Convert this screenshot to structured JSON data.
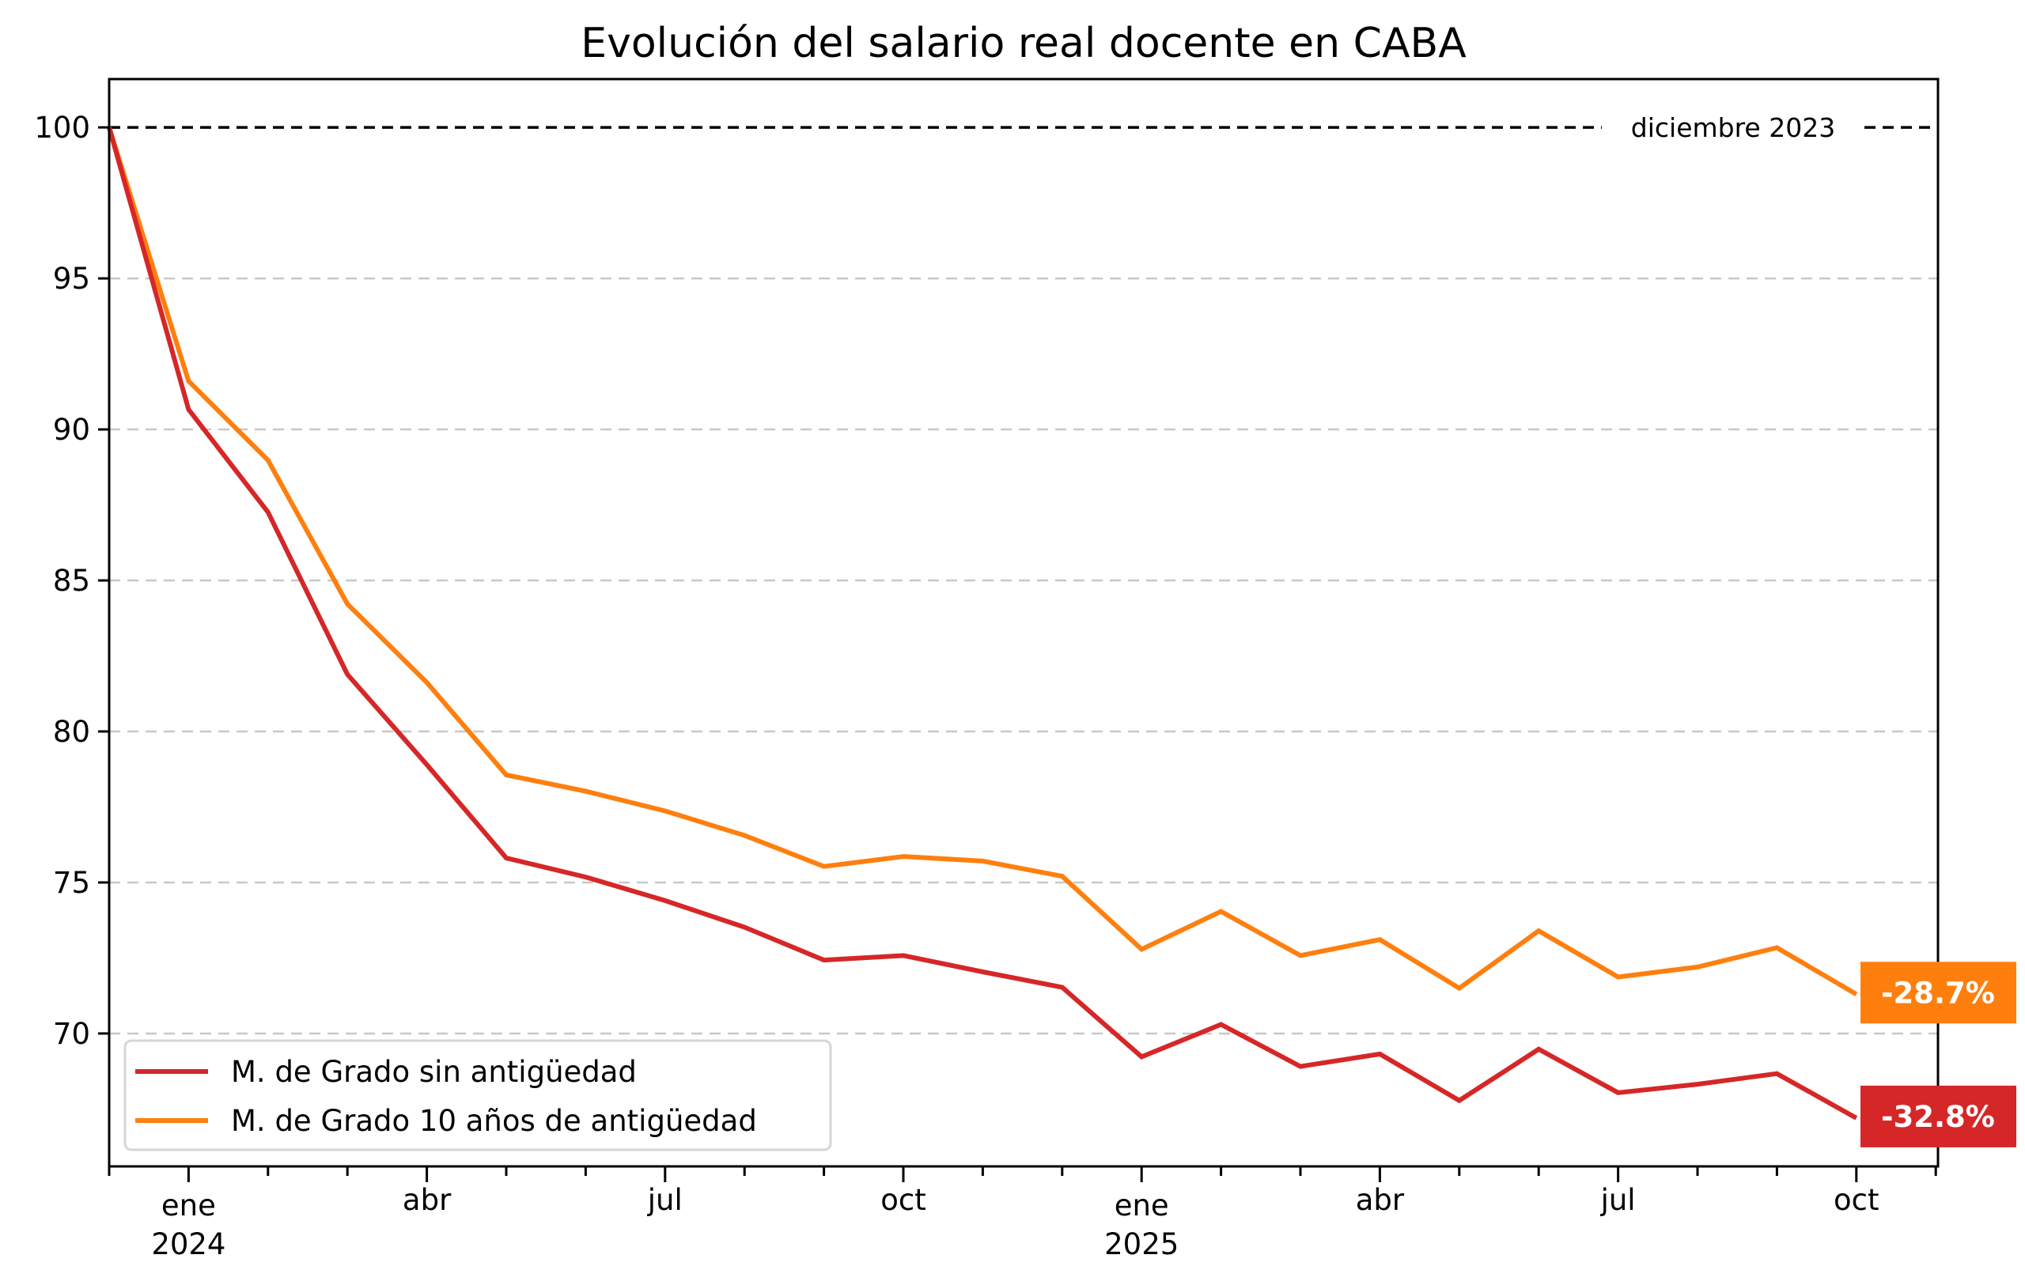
{
  "chart_data": {
    "type": "line",
    "title": "Evolución del salario real docente en CABA",
    "xlabel": "",
    "ylabel": "",
    "ylim": [
      65.6,
      101.6
    ],
    "yticks": [
      70,
      75,
      80,
      85,
      90,
      95,
      100
    ],
    "grid": "horizontal dashed",
    "x": [
      "2023-12",
      "2024-01",
      "2024-02",
      "2024-03",
      "2024-04",
      "2024-05",
      "2024-06",
      "2024-07",
      "2024-08",
      "2024-09",
      "2024-10",
      "2024-11",
      "2024-12",
      "2025-01",
      "2025-02",
      "2025-03",
      "2025-04",
      "2025-05",
      "2025-06",
      "2025-07",
      "2025-08",
      "2025-09",
      "2025-10"
    ],
    "xlim_months": [
      0,
      23
    ],
    "xtick_labels": [
      {
        "month_index": 1,
        "label": "ene",
        "sublabel": "2024"
      },
      {
        "month_index": 4,
        "label": "abr",
        "sublabel": ""
      },
      {
        "month_index": 7,
        "label": "jul",
        "sublabel": ""
      },
      {
        "month_index": 10,
        "label": "oct",
        "sublabel": ""
      },
      {
        "month_index": 13,
        "label": "ene",
        "sublabel": "2025"
      },
      {
        "month_index": 16,
        "label": "abr",
        "sublabel": ""
      },
      {
        "month_index": 19,
        "label": "jul",
        "sublabel": ""
      },
      {
        "month_index": 22,
        "label": "oct",
        "sublabel": ""
      }
    ],
    "series": [
      {
        "name": "M. de Grado sin antigüedad",
        "color": "#d62728",
        "values": [
          100,
          90.66,
          87.26,
          81.89,
          78.9,
          75.81,
          75.18,
          74.4,
          73.52,
          72.43,
          72.58,
          72.04,
          71.53,
          69.23,
          70.3,
          68.91,
          69.32,
          67.78,
          69.48,
          68.04,
          68.32,
          68.67,
          67.2
        ],
        "end_label": "-32.8%"
      },
      {
        "name": "M. de Grado 10 años de antigüedad",
        "color": "#ff7f0e",
        "values": [
          100,
          91.6,
          88.98,
          84.22,
          81.62,
          78.56,
          78.02,
          77.37,
          76.56,
          75.53,
          75.86,
          75.71,
          75.21,
          72.79,
          74.04,
          72.58,
          73.11,
          71.5,
          73.4,
          71.87,
          72.2,
          72.84,
          71.3
        ],
        "end_label": "-28.7%"
      }
    ],
    "reference_line": {
      "value": 100,
      "label": "diciembre 2023",
      "style": "dashed",
      "color": "#000000"
    },
    "legend": {
      "position": "lower-left"
    }
  }
}
